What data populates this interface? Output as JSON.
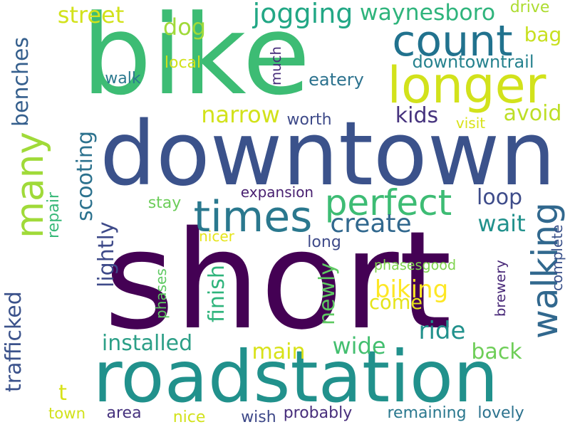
{
  "palette": {
    "c1": "#440154",
    "c2": "#46327e",
    "c3": "#365c8d",
    "c4": "#277f8e",
    "c5": "#1fa187",
    "c6": "#4ac16d",
    "c7": "#a0da39",
    "c8": "#d8e219"
  },
  "words": [
    {
      "text": "short",
      "color": "#440154"
    },
    {
      "text": "bike",
      "color": "#3dbc74"
    },
    {
      "text": "downtown",
      "color": "#3b528b"
    },
    {
      "text": "roadstation",
      "color": "#21918c"
    },
    {
      "text": "longer",
      "color": "#d2e21b"
    },
    {
      "text": "count",
      "color": "#21728e"
    },
    {
      "text": "times",
      "color": "#2a788e"
    },
    {
      "text": "perfect",
      "color": "#3dbc74"
    },
    {
      "text": "many",
      "color": "#a0da39"
    },
    {
      "text": "walking",
      "color": "#31688e"
    },
    {
      "text": "trafficked",
      "color": "#3b528b"
    },
    {
      "text": "scooting",
      "color": "#2c728e"
    },
    {
      "text": "lightly",
      "color": "#3e4a89"
    },
    {
      "text": "jogging",
      "color": "#22a785"
    },
    {
      "text": "waynesboro",
      "color": "#2fb47c"
    },
    {
      "text": "street",
      "color": "#d2e21b"
    },
    {
      "text": "dog",
      "color": "#a0da39"
    },
    {
      "text": "benches",
      "color": "#355f8d"
    },
    {
      "text": "repair",
      "color": "#37b878"
    },
    {
      "text": "narrow",
      "color": "#d2e21b"
    },
    {
      "text": "kids",
      "color": "#46337e"
    },
    {
      "text": "avoid",
      "color": "#bddf26"
    },
    {
      "text": "loop",
      "color": "#3e4c8a"
    },
    {
      "text": "create",
      "color": "#31688e"
    },
    {
      "text": "wait",
      "color": "#21918c"
    },
    {
      "text": "finish",
      "color": "#2fb47c"
    },
    {
      "text": "newly",
      "color": "#5ec962"
    },
    {
      "text": "biking",
      "color": "#fde725"
    },
    {
      "text": "come",
      "color": "#e5e419"
    },
    {
      "text": "ride",
      "color": "#21918c"
    },
    {
      "text": "installed",
      "color": "#2c9f87"
    },
    {
      "text": "wide",
      "color": "#44bf70"
    },
    {
      "text": "main",
      "color": "#d8e219"
    },
    {
      "text": "back",
      "color": "#6ece58"
    },
    {
      "text": "bag",
      "color": "#c8e020"
    },
    {
      "text": "drive",
      "color": "#addc30"
    },
    {
      "text": "downtowntrail",
      "color": "#26828e"
    },
    {
      "text": "local",
      "color": "#d2e21b"
    },
    {
      "text": "walk",
      "color": "#2a788e"
    },
    {
      "text": "much",
      "color": "#472d7b"
    },
    {
      "text": "eatery",
      "color": "#2c728e"
    },
    {
      "text": "worth",
      "color": "#3e4a89"
    },
    {
      "text": "visit",
      "color": "#d8e219"
    },
    {
      "text": "expansion",
      "color": "#481f70"
    },
    {
      "text": "stay",
      "color": "#6ccd5a"
    },
    {
      "text": "nicer",
      "color": "#e5e419"
    },
    {
      "text": "long",
      "color": "#3e4a89"
    },
    {
      "text": "complete",
      "color": "#3b528b"
    },
    {
      "text": "phasesgood",
      "color": "#7fd34e"
    },
    {
      "text": "phases",
      "color": "#5ec962"
    },
    {
      "text": "brewery",
      "color": "#482878"
    },
    {
      "text": "t",
      "color": "#d8e219"
    },
    {
      "text": "town",
      "color": "#d2e21b"
    },
    {
      "text": "area",
      "color": "#46327e"
    },
    {
      "text": "nice",
      "color": "#d2e21b"
    },
    {
      "text": "wish",
      "color": "#3e4989"
    },
    {
      "text": "probably",
      "color": "#472d7b"
    },
    {
      "text": "remaining",
      "color": "#2a788e"
    },
    {
      "text": "lovely",
      "color": "#2c728e"
    }
  ]
}
